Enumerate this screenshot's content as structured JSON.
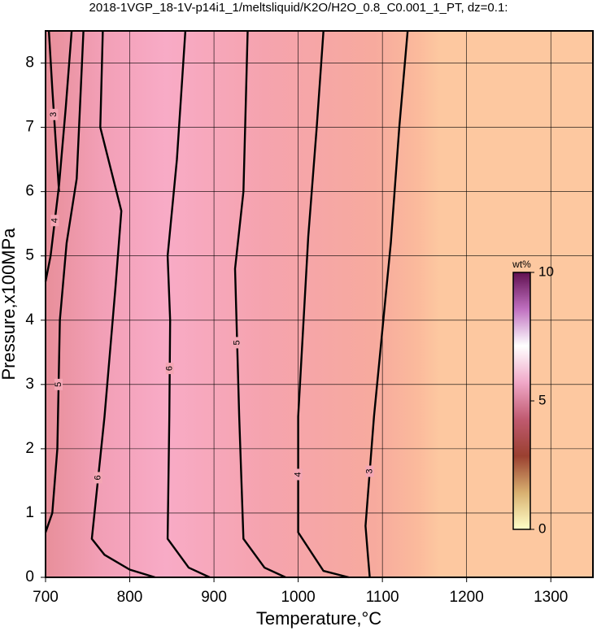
{
  "chart_data": {
    "type": "contour",
    "title": "2018-1VGP_18-1V-p14i1_1/meltsliquid/K2O/H2O_0.8_C0.001_1_PT, dz=0.1:",
    "x_label": "Temperature,°C",
    "y_label": "Pressure,x100MPa",
    "xlim": [
      700,
      1350
    ],
    "ylim": [
      0,
      8.5
    ],
    "xticks": [
      700,
      800,
      900,
      1000,
      1100,
      1200,
      1300
    ],
    "yticks": [
      0,
      1,
      2,
      3,
      4,
      5,
      6,
      7,
      8
    ],
    "grid": true,
    "contours": [
      {
        "level": 3,
        "x": [
          704,
          708,
          712,
          716
        ],
        "y": [
          8.5,
          7.6,
          6.8,
          6.0
        ]
      },
      {
        "level": 4,
        "x": [
          731,
          724,
          716,
          706,
          700
        ],
        "y": [
          8.5,
          7.3,
          6.1,
          5.0,
          4.6
        ]
      },
      {
        "level": 5,
        "x": [
          745,
          737,
          725,
          717,
          714,
          708,
          700
        ],
        "y": [
          8.5,
          6.2,
          5.2,
          4.0,
          2.0,
          1.0,
          0.7
        ]
      },
      {
        "level": 6,
        "x": [
          768,
          765,
          790,
          783,
          770,
          755,
          770,
          800,
          830
        ],
        "y": [
          8.5,
          7.0,
          5.7,
          4.5,
          2.5,
          0.6,
          0.35,
          0.12,
          0.0
        ]
      },
      {
        "level": 6,
        "x": [
          866,
          856,
          845,
          848,
          847,
          845,
          870,
          895
        ],
        "y": [
          8.5,
          6.5,
          5.0,
          4.0,
          2.5,
          0.6,
          0.15,
          0.0
        ]
      },
      {
        "level": 5,
        "x": [
          940,
          937,
          935,
          925,
          930,
          935,
          960,
          985
        ],
        "y": [
          8.5,
          7.0,
          6.0,
          4.8,
          2.5,
          0.6,
          0.15,
          0.0
        ]
      },
      {
        "level": 4,
        "x": [
          1030,
          1022,
          1012,
          1000,
          1000,
          1030,
          1060
        ],
        "y": [
          8.5,
          7.0,
          5.3,
          2.5,
          0.7,
          0.1,
          0.0
        ]
      },
      {
        "level": 3,
        "x": [
          1130,
          1120,
          1110,
          1090,
          1080,
          1083,
          1085
        ],
        "y": [
          8.5,
          7.0,
          5.2,
          2.5,
          0.8,
          0.3,
          0.0
        ]
      }
    ],
    "colorbar": {
      "label": "wt%",
      "lim": [
        0,
        10
      ],
      "ticks": [
        0,
        5,
        10
      ],
      "colors": [
        "#ffffc8",
        "#d8b070",
        "#9a4030",
        "#c05a70",
        "#f0a8c8",
        "#ffffff",
        "#c070c0",
        "#601050"
      ]
    }
  }
}
